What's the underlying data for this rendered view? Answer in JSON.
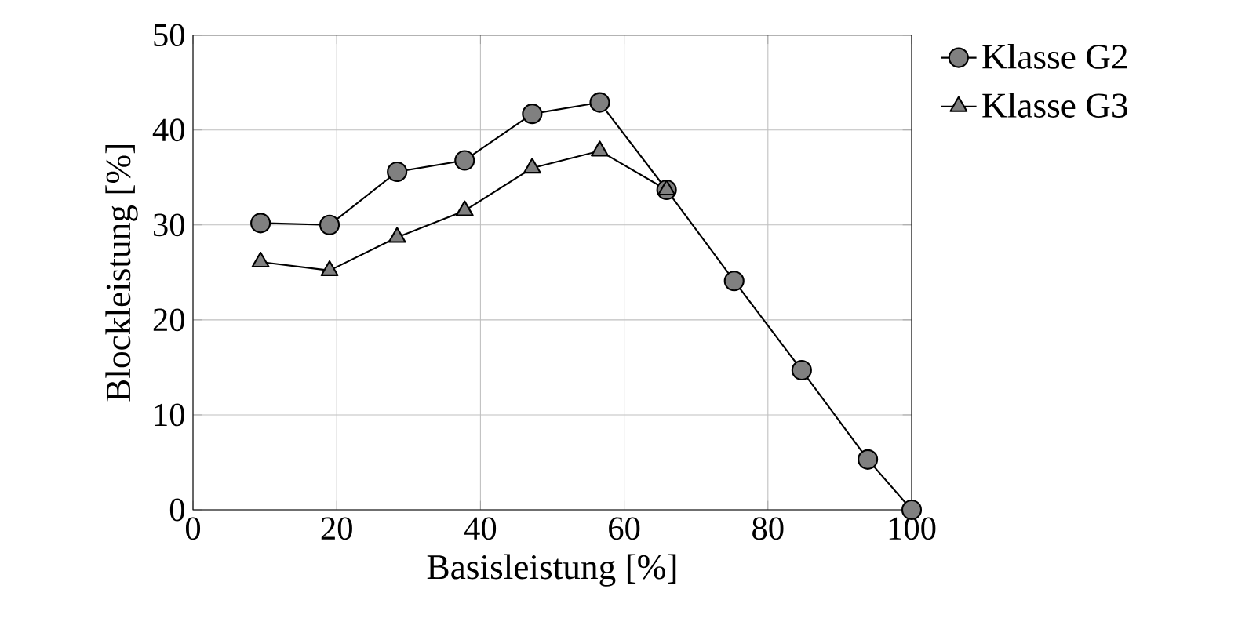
{
  "chart_data": {
    "type": "line",
    "xlabel": "Basisleistung [%]",
    "ylabel": "Blockleistung [%]",
    "xlim": [
      0,
      100
    ],
    "ylim": [
      0,
      50
    ],
    "xticks": [
      0,
      20,
      40,
      60,
      80,
      100
    ],
    "yticks": [
      0,
      10,
      20,
      30,
      40,
      50
    ],
    "grid": true,
    "legend": "right",
    "line_style": "solid",
    "series": [
      {
        "name": "Klasse G2",
        "color": "#808080",
        "marker": "circle",
        "x": [
          9.4,
          19,
          28.4,
          37.8,
          47.2,
          56.6,
          65.9,
          75.3,
          84.7,
          93.9,
          100
        ],
        "values": [
          30.2,
          30,
          35.6,
          36.8,
          41.7,
          42.9,
          33.7,
          24.1,
          14.7,
          5.3,
          0
        ]
      },
      {
        "name": "Klasse G3",
        "color": "#808080",
        "marker": "triangle",
        "x": [
          9.4,
          19,
          28.4,
          37.8,
          47.2,
          56.6,
          65.9
        ],
        "values": [
          26.1,
          25.2,
          28.7,
          31.5,
          36,
          37.8,
          33.7
        ]
      }
    ]
  }
}
